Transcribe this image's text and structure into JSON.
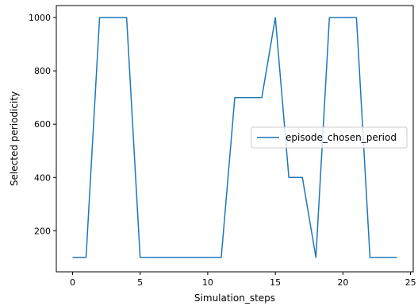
{
  "chart_data": {
    "type": "line",
    "title": "",
    "xlabel": "Simulation_steps",
    "ylabel": "Selected periodicity",
    "xlim": [
      -1.2,
      25.2
    ],
    "ylim": [
      46,
      1045
    ],
    "x_ticks": [
      0,
      5,
      10,
      15,
      20,
      25
    ],
    "y_ticks": [
      200,
      400,
      600,
      800,
      1000
    ],
    "grid": false,
    "legend_position": "center-right",
    "x": [
      0,
      1,
      2,
      3,
      4,
      5,
      6,
      7,
      8,
      9,
      10,
      11,
      12,
      13,
      14,
      15,
      16,
      17,
      18,
      19,
      20,
      21,
      22,
      23,
      24
    ],
    "series": [
      {
        "name": "episode_chosen_period",
        "color": "#1f77b4",
        "values": [
          100,
          100,
          1000,
          1000,
          1000,
          100,
          100,
          100,
          100,
          100,
          100,
          100,
          700,
          700,
          700,
          1000,
          400,
          400,
          100,
          1000,
          1000,
          1000,
          100,
          100,
          100
        ]
      }
    ]
  }
}
